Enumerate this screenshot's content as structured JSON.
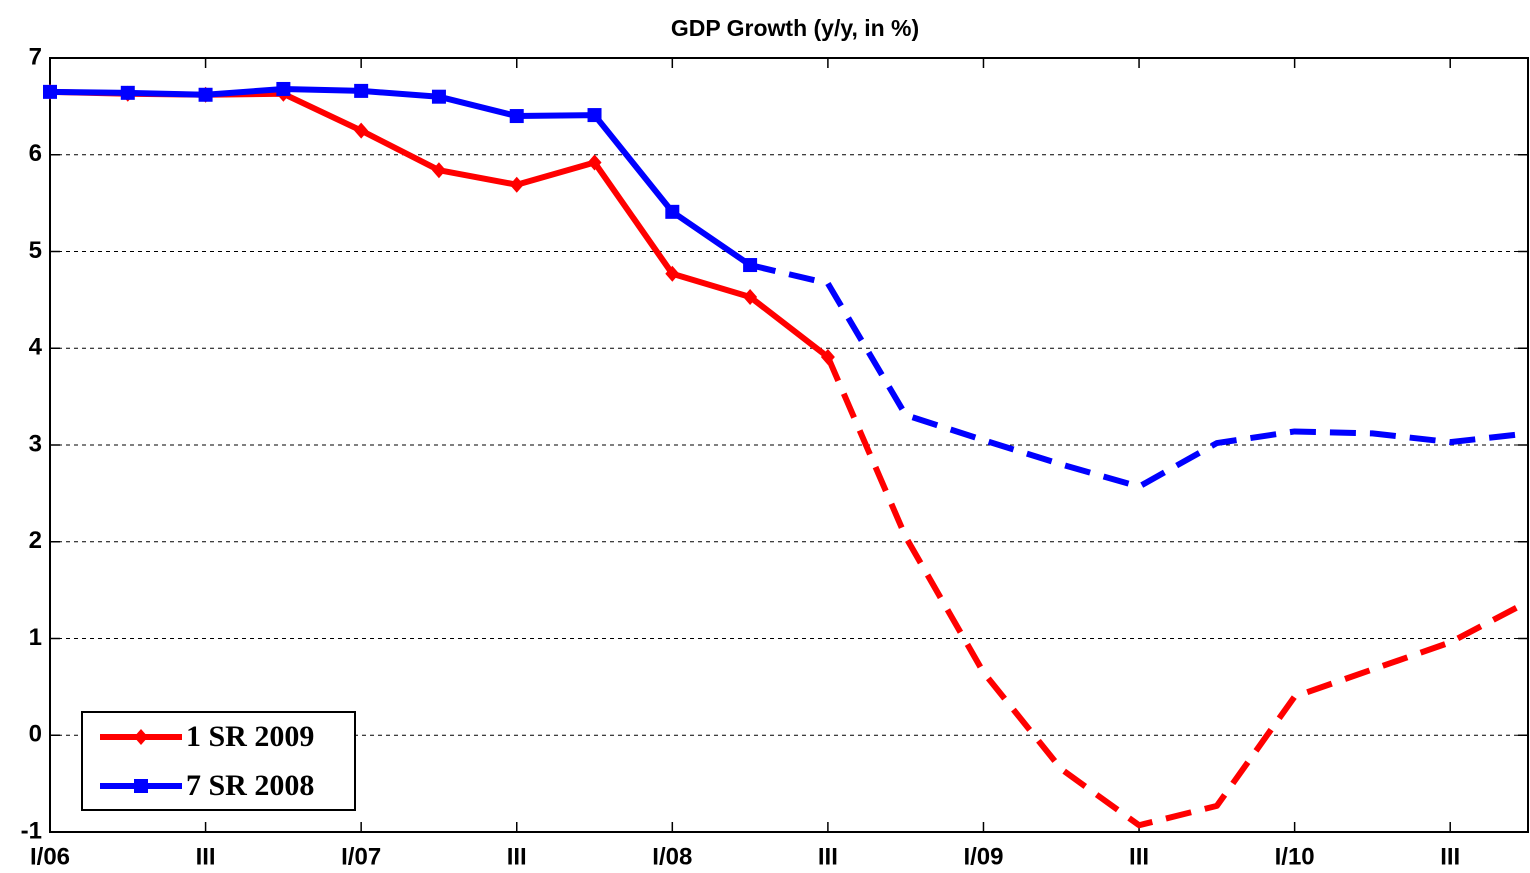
{
  "chart_data": {
    "type": "line",
    "title": "GDP Growth (y/y, in %)",
    "categories": [
      "I/06",
      null,
      "III",
      null,
      "I/07",
      null,
      "III",
      null,
      "I/08",
      null,
      "III",
      null,
      "I/09",
      null,
      "III",
      null,
      "I/10",
      null,
      "III",
      null
    ],
    "series": [
      {
        "name": "1 SR 2009",
        "color": "#ff0000",
        "marker": "diamond",
        "dashed_from": 10,
        "values": [
          6.65,
          6.63,
          6.62,
          6.63,
          6.25,
          5.84,
          5.69,
          5.92,
          4.77,
          4.53,
          3.91,
          2.05,
          0.65,
          -0.35,
          -0.93,
          -0.73,
          0.4,
          0.68,
          0.96,
          1.38
        ]
      },
      {
        "name": "7 SR 2008",
        "color": "#0000ff",
        "marker": "square",
        "dashed_from": 9,
        "values": [
          6.65,
          6.64,
          6.62,
          6.68,
          6.66,
          6.6,
          6.4,
          6.41,
          5.41,
          4.86,
          4.67,
          3.31,
          3.05,
          2.8,
          2.57,
          3.02,
          3.14,
          3.12,
          3.03,
          3.12
        ]
      }
    ],
    "ylim": [
      -1,
      7
    ],
    "yticks": [
      -1,
      0,
      1,
      2,
      3,
      4,
      5,
      6,
      7
    ],
    "grid": true,
    "legend": "lower left"
  }
}
